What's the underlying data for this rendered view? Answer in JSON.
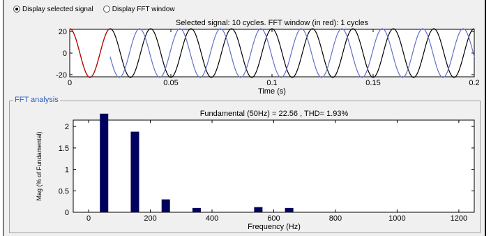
{
  "options": {
    "display_selected_signal": "Display selected signal",
    "display_fft_window": "Display FFT window",
    "selected": "display_selected_signal"
  },
  "signal_panel": {
    "title": "Selected signal: 10 cycles. FFT window (in red): 1 cycles",
    "xlabel": "Time (s)"
  },
  "fft_panel": {
    "group_label": "FFT analysis",
    "summary": "Fundamental (50Hz) = 22.56 , THD= 1.93%",
    "xlabel": "Frequency (Hz)",
    "ylabel": "Mag (% of Fundamental)"
  },
  "chart_data": [
    {
      "type": "line",
      "title": "Selected signal: 10 cycles. FFT window (in red): 1 cycles",
      "xlabel": "Time (s)",
      "ylabel": "",
      "xlim": [
        0,
        0.2
      ],
      "ylim": [
        -22,
        22
      ],
      "x_ticks": [
        "0",
        "0.05",
        "0.1",
        "0.15",
        "0.2"
      ],
      "y_ticks": [
        "-20",
        "0",
        "20"
      ],
      "series": [
        {
          "frequency_hz": 50,
          "amplitude": 22.56,
          "cycles": 10,
          "color": "#000000"
        },
        {
          "cycles": 1,
          "color": "#cc0000"
        }
      ],
      "overlay_color": "#6070c8"
    },
    {
      "type": "bar",
      "title": "Fundamental (50Hz) = 22.56 , THD= 1.93%",
      "xlabel": "Frequency (Hz)",
      "ylabel": "Mag (% of Fundamental)",
      "xlim": [
        -50,
        1250
      ],
      "ylim": [
        0,
        2.15
      ],
      "x_ticks": [
        "0",
        "200",
        "400",
        "600",
        "800",
        "1000",
        "1200"
      ],
      "y_ticks": [
        "0",
        "0.5",
        "1",
        "1.5",
        "2"
      ],
      "bar_color": "#00005e",
      "x": [
        50,
        150,
        250,
        350,
        550,
        650
      ],
      "values": [
        2.3,
        1.88,
        0.3,
        0.1,
        0.12,
        0.1
      ]
    }
  ]
}
